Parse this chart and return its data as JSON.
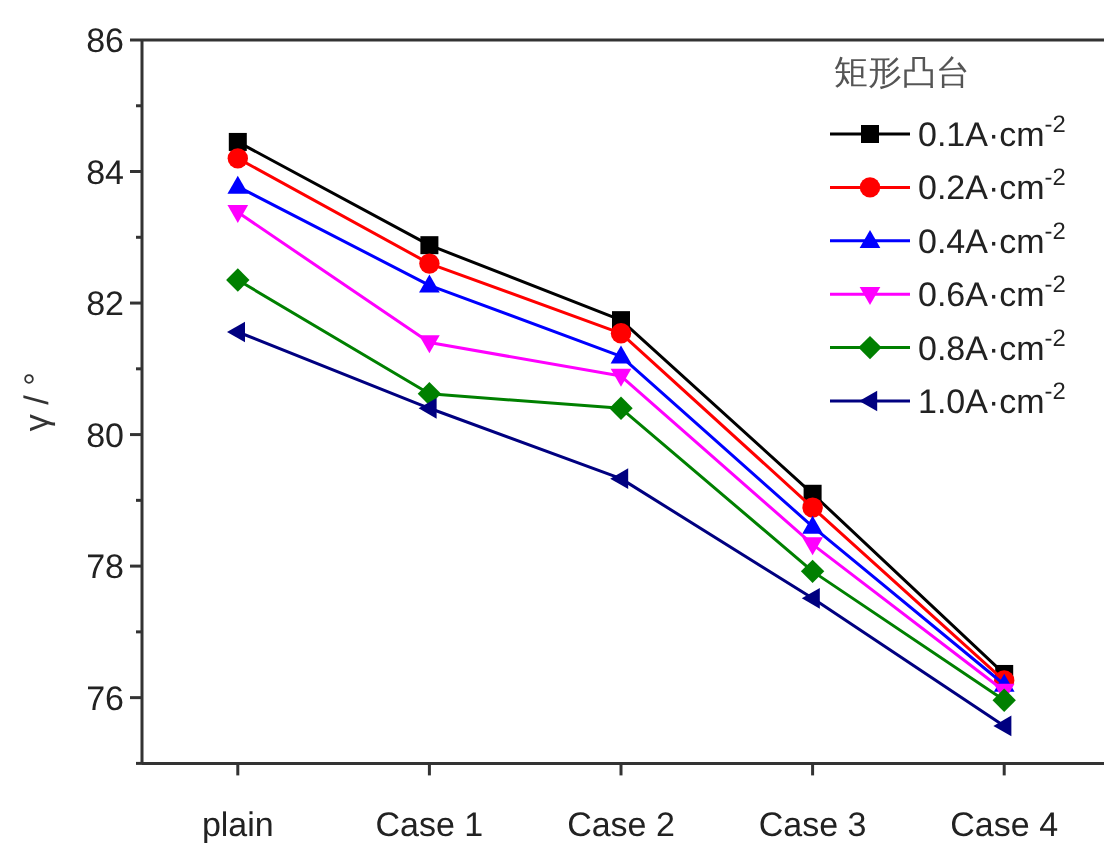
{
  "chart_data": {
    "type": "line",
    "legend_title": "矩形凸台",
    "ylabel": "γ / °",
    "categories": [
      "plain",
      "Case 1",
      "Case 2",
      "Case 3",
      "Case 4"
    ],
    "ylim": [
      75,
      86
    ],
    "yticks": [
      {
        "value": 75,
        "label": null
      },
      76,
      {
        "value": 77,
        "label": null
      },
      78,
      {
        "value": 79,
        "label": null
      },
      80,
      {
        "value": 81,
        "label": null
      },
      82,
      {
        "value": 83,
        "label": null
      },
      84,
      {
        "value": 85,
        "label": null
      },
      86
    ],
    "legend": "top right",
    "grid": false,
    "line_style": "solid",
    "series": [
      {
        "name": "0.1A·cm$^{-2}$",
        "color": "#000000",
        "marker": "square",
        "values": [
          84.45,
          82.88,
          81.74,
          79.1,
          76.36
        ]
      },
      {
        "name": "0.2A·cm$^{-2}$",
        "color": "#ff0000",
        "marker": "circle",
        "values": [
          84.2,
          82.6,
          81.54,
          78.89,
          76.26
        ]
      },
      {
        "name": "0.4A·cm$^{-2}$",
        "color": "#0000ff",
        "marker": "triangle",
        "values": [
          83.77,
          82.27,
          81.19,
          78.6,
          76.2
        ]
      },
      {
        "name": "0.6A·cm$^{-2}$",
        "color": "#ff00ff",
        "marker": "triangle-down",
        "values": [
          83.38,
          81.4,
          80.89,
          78.33,
          76.1
        ]
      },
      {
        "name": "0.8A·cm$^{-2}$",
        "color": "#008000",
        "marker": "diamond",
        "values": [
          82.35,
          80.62,
          80.4,
          77.92,
          75.96
        ]
      },
      {
        "name": "1.0A·cm$^{-2}$",
        "color": "#000080",
        "marker": "triangle-left",
        "values": [
          81.56,
          80.4,
          79.33,
          77.51,
          75.57
        ]
      }
    ]
  }
}
